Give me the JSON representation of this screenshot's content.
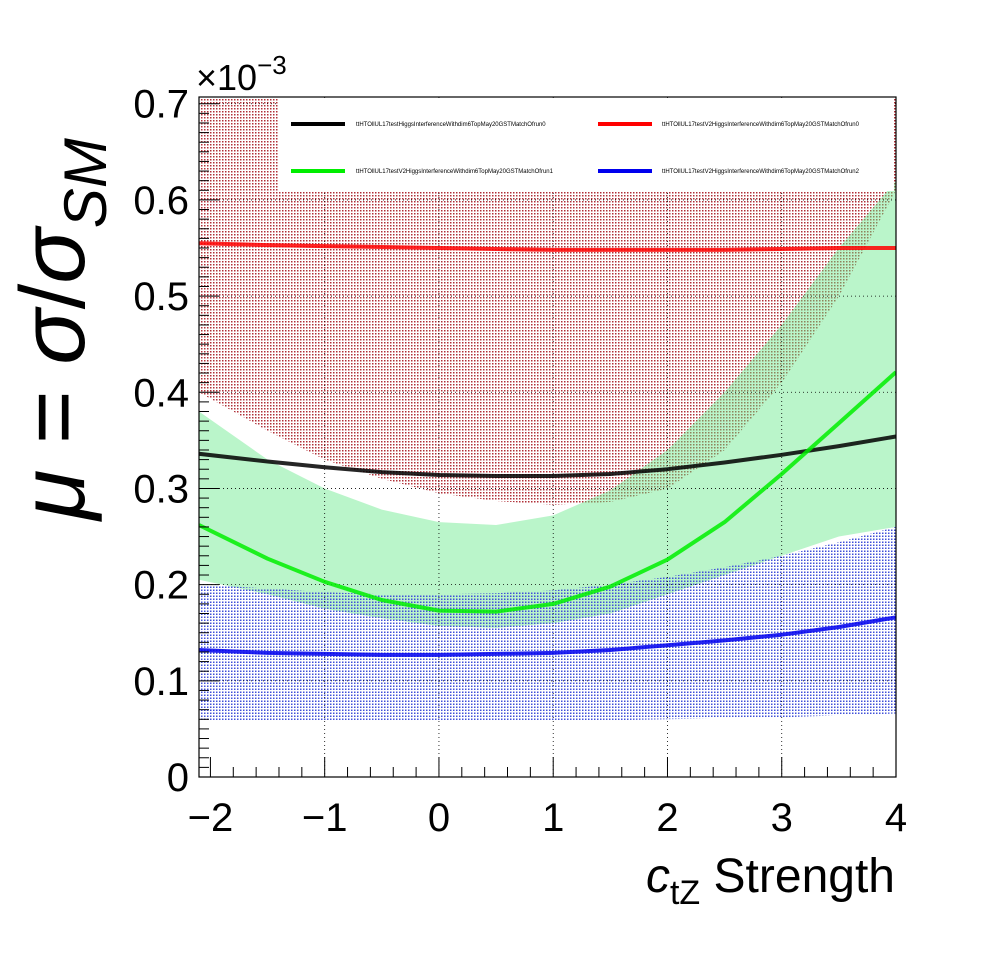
{
  "chart_data": {
    "type": "line",
    "title": "",
    "xlabel": {
      "base": "c",
      "sub": "tZ",
      "rest": " Strength"
    },
    "ylabel": {
      "mu": "μ",
      "eq": " = ",
      "sigma": "σ",
      "slash": "/",
      "sigma_sm": "σ",
      "sub": "SM"
    },
    "exponent_label": "×10",
    "exponent_power": "−3",
    "xlim": [
      -2.1,
      4.0
    ],
    "ylim": [
      0,
      0.707
    ],
    "x_ticks": [
      -2,
      -1,
      0,
      1,
      2,
      3,
      4
    ],
    "x_tick_labels": [
      "−2",
      "−1",
      "0",
      "1",
      "2",
      "3",
      "4"
    ],
    "y_ticks": [
      0,
      0.1,
      0.2,
      0.3,
      0.4,
      0.5,
      0.6,
      0.7
    ],
    "y_tick_labels": [
      "0",
      "0.1",
      "0.2",
      "0.3",
      "0.4",
      "0.5",
      "0.6",
      "0.7"
    ],
    "grid": true,
    "legend_position": "top",
    "x": [
      -2.1,
      -1.5,
      -1.0,
      -0.5,
      0.0,
      0.5,
      1.0,
      1.5,
      2.0,
      2.5,
      3.0,
      3.5,
      4.0
    ],
    "series": [
      {
        "name": "ttHTOllUL17testHiggsInterferenceWithdim6TopMay20GSTMatchOfrun0",
        "color": "#000000",
        "values": [
          0.336,
          0.328,
          0.322,
          0.317,
          0.314,
          0.313,
          0.313,
          0.315,
          0.32,
          0.327,
          0.335,
          0.344,
          0.354
        ],
        "band_upper": null,
        "band_lower": null
      },
      {
        "name": "ttHTOllUL17testV2HiggsInterferenceWithdim6TopMay20GSTMatchOfrun0",
        "color": "#ff0000",
        "values": [
          0.555,
          0.553,
          0.552,
          0.551,
          0.55,
          0.549,
          0.548,
          0.548,
          0.548,
          0.548,
          0.549,
          0.55,
          0.55
        ],
        "band_upper": [
          0.707,
          0.707,
          0.707,
          0.707,
          0.707,
          0.707,
          0.707,
          0.707,
          0.707,
          0.707,
          0.707,
          0.707,
          0.707
        ],
        "band_lower": [
          0.4,
          0.36,
          0.33,
          0.31,
          0.295,
          0.287,
          0.283,
          0.286,
          0.3,
          0.34,
          0.41,
          0.5,
          0.61
        ],
        "band_color": "#b03038"
      },
      {
        "name": "ttHTOllUL17testV2HiggsInterferenceWithdim6TopMay20GSTMatchOfrun1",
        "color": "#00ee00",
        "values": [
          0.262,
          0.227,
          0.203,
          0.184,
          0.173,
          0.172,
          0.18,
          0.198,
          0.226,
          0.265,
          0.315,
          0.368,
          0.421
        ],
        "band_upper": [
          0.38,
          0.33,
          0.3,
          0.278,
          0.265,
          0.262,
          0.272,
          0.298,
          0.34,
          0.4,
          0.47,
          0.55,
          0.62
        ],
        "band_lower": [
          0.205,
          0.19,
          0.175,
          0.165,
          0.157,
          0.155,
          0.16,
          0.17,
          0.19,
          0.21,
          0.23,
          0.25,
          0.26
        ],
        "band_color": "#66e88a"
      },
      {
        "name": "ttHTOllUL17testV2HiggsInterferenceWithdim6TopMay20GSTMatchOfrun2",
        "color": "#0000ee",
        "values": [
          0.132,
          0.129,
          0.128,
          0.127,
          0.127,
          0.128,
          0.129,
          0.132,
          0.137,
          0.142,
          0.148,
          0.156,
          0.166
        ],
        "band_upper": [
          0.2,
          0.196,
          0.192,
          0.19,
          0.19,
          0.191,
          0.194,
          0.2,
          0.208,
          0.218,
          0.23,
          0.244,
          0.26
        ],
        "band_lower": [
          0.059,
          0.059,
          0.059,
          0.059,
          0.059,
          0.059,
          0.059,
          0.059,
          0.06,
          0.061,
          0.062,
          0.064,
          0.066
        ],
        "band_color": "#4050d8"
      }
    ]
  }
}
